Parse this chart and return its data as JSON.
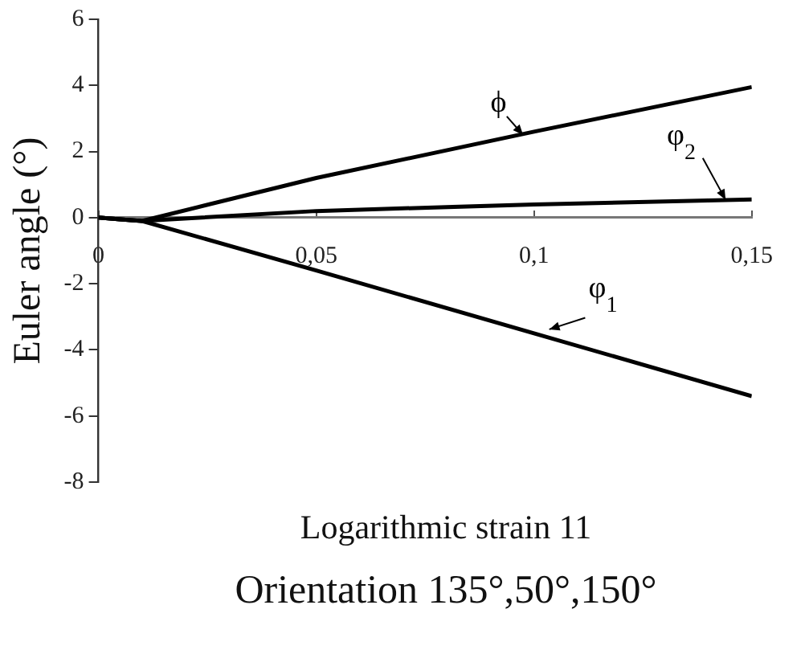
{
  "chart_data": {
    "type": "line",
    "title": "Orientation 135°,50°,150°",
    "xlabel": "Logarithmic strain 11",
    "ylabel": "Euler angle (°)",
    "xlim": [
      0,
      0.15
    ],
    "xticks": [
      {
        "value": 0,
        "label": "0"
      },
      {
        "value": 0.05,
        "label": "0,05"
      },
      {
        "value": 0.1,
        "label": "0,1"
      },
      {
        "value": 0.15,
        "label": "0,15"
      }
    ],
    "ylim": [
      -8,
      6
    ],
    "yticks": [
      -8,
      -6,
      -4,
      -2,
      0,
      2,
      4,
      6
    ],
    "grid": false,
    "legend": false,
    "marker": "none",
    "line_style": "solid",
    "series": [
      {
        "name": "ϕ",
        "color": "#000000",
        "x": [
          0,
          0.005,
          0.01,
          0.05,
          0.1,
          0.15
        ],
        "values": [
          0,
          -0.05,
          -0.1,
          1.2,
          2.6,
          3.95
        ]
      },
      {
        "name": "φ$_{2}$",
        "color": "#000000",
        "x": [
          0,
          0.005,
          0.01,
          0.05,
          0.1,
          0.15
        ],
        "values": [
          0,
          -0.05,
          -0.1,
          0.2,
          0.4,
          0.55
        ]
      },
      {
        "name": "φ$_{1}$",
        "color": "#000000",
        "x": [
          0,
          0.005,
          0.01,
          0.05,
          0.1,
          0.15
        ],
        "values": [
          0,
          -0.05,
          -0.1,
          -1.6,
          -3.5,
          -5.4
        ]
      }
    ]
  }
}
